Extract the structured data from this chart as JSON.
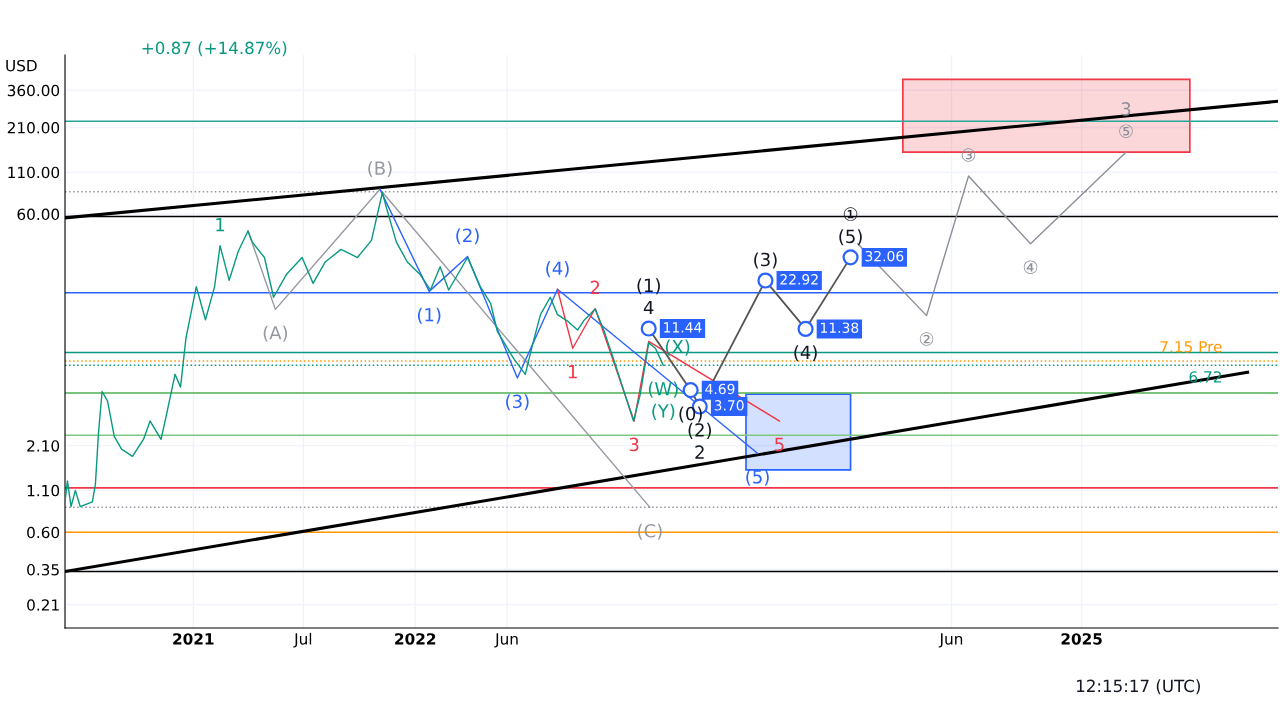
{
  "chart_data": {
    "type": "line",
    "ylabel": "USD",
    "log": true,
    "grid": true,
    "xlim": [
      "2020-06-04",
      "2025-11-20"
    ],
    "ylim": [
      0.15,
      600
    ],
    "xticks": [
      {
        "value": "2021-01-01",
        "label": "2021"
      },
      {
        "value": "2021-07-01",
        "label": "Jul"
      },
      {
        "value": "2022-01-01",
        "label": "2022"
      },
      {
        "value": "2022-06-01",
        "label": "Jun"
      },
      {
        "value": "2024-06-01",
        "label": "Jun"
      },
      {
        "value": "2025-01-01",
        "label": "2025"
      }
    ],
    "yticks": [
      {
        "value": 360,
        "label": "360.00"
      },
      {
        "value": 210,
        "label": "210.00"
      },
      {
        "value": 110,
        "label": "110.00"
      },
      {
        "value": 60,
        "label": "60.00"
      },
      {
        "value": 2.1,
        "label": "2.10"
      },
      {
        "value": 1.1,
        "label": "1.10"
      },
      {
        "value": 0.6,
        "label": "0.60"
      },
      {
        "value": 0.35,
        "label": "0.35"
      },
      {
        "value": 0.21,
        "label": "0.21"
      }
    ],
    "series": [
      {
        "type": "area",
        "color": "#f23645",
        "x": [
          "2024-03-13",
          "2024-03-13",
          "2025-06-28",
          "2025-06-28",
          "2024-03-13"
        ],
        "values": [
          147,
          422,
          422,
          147,
          147
        ]
      },
      {
        "type": "area",
        "color": "#2962ff",
        "x": [
          "2023-06-29",
          "2023-06-29",
          "2023-12-18",
          "2023-12-18",
          "2023-06-29"
        ],
        "values": [
          1.48,
          4.42,
          4.42,
          1.48,
          1.48
        ]
      },
      {
        "color": "#000000",
        "x": [
          "2020-06-04",
          "2025-11-20"
        ],
        "values": [
          56.8,
          307
        ]
      },
      {
        "color": "#000000",
        "x": [
          "2020-06-04",
          "2025-10-01"
        ],
        "values": [
          0.34,
          6.07
        ]
      },
      {
        "color": "#9598a1",
        "x": [
          "2021-04-01",
          "2021-05-16",
          "2021-11-04",
          "2023-01-22"
        ],
        "values": [
          47,
          15.1,
          86,
          0.86
        ]
      },
      {
        "color": "#2962ff",
        "x": [
          "2021-11-04",
          "2022-01-24",
          "2022-03-28",
          "2022-06-18",
          "2022-08-23",
          "2023-07-18"
        ],
        "values": [
          86,
          19.6,
          32.5,
          5.6,
          20.2,
          1.88
        ]
      },
      {
        "color": "#f23645",
        "x": [
          "2022-08-23",
          "2022-09-17",
          "2022-10-24",
          "2022-12-27",
          "2023-01-20",
          "2023-08-23"
        ],
        "values": [
          20.2,
          8.6,
          15.3,
          3.0,
          9.5,
          3.0
        ]
      },
      {
        "color": "#089981",
        "x": [
          "2020-06-04",
          "2020-06-08",
          "2020-06-14",
          "2020-06-21",
          "2020-06-29",
          "2020-07-19",
          "2020-07-24",
          "2020-07-29",
          "2020-08-04",
          "2020-08-13",
          "2020-08-24",
          "2020-09-05",
          "2020-09-23",
          "2020-10-11",
          "2020-10-22",
          "2020-11-09",
          "2020-11-18",
          "2020-12-02",
          "2020-12-11",
          "2020-12-20",
          "2021-01-06",
          "2021-01-21",
          "2021-02-05",
          "2021-02-14",
          "2021-03-01",
          "2021-03-16",
          "2021-04-01",
          "2021-04-08",
          "2021-04-28",
          "2021-05-13",
          "2021-06-03",
          "2021-06-29",
          "2021-07-17",
          "2021-08-06",
          "2021-09-01",
          "2021-09-28",
          "2021-10-21",
          "2021-11-08",
          "2021-11-15",
          "2021-12-01",
          "2021-12-19",
          "2022-01-09",
          "2022-01-26",
          "2022-02-11",
          "2022-02-25",
          "2022-03-28",
          "2022-04-18",
          "2022-05-05",
          "2022-05-16",
          "2022-06-12",
          "2022-07-01",
          "2022-07-14",
          "2022-07-26",
          "2022-08-11",
          "2022-08-23",
          "2022-09-08",
          "2022-09-25",
          "2022-10-05",
          "2022-10-24",
          "2022-11-07",
          "2022-11-23",
          "2022-12-26",
          "2023-01-06",
          "2023-01-20",
          "2023-01-31",
          "2023-02-08",
          "2023-02-13"
        ],
        "values": [
          0.93,
          1.26,
          0.87,
          1.1,
          0.87,
          0.93,
          1.2,
          2.5,
          4.6,
          4.0,
          2.4,
          2.0,
          1.8,
          2.3,
          3.0,
          2.3,
          3.3,
          5.9,
          4.9,
          10,
          21,
          13,
          21,
          38,
          23,
          35,
          47,
          40,
          32,
          18,
          25,
          32,
          22,
          30,
          36,
          32,
          41,
          82,
          65,
          40,
          30,
          25,
          20,
          28,
          20,
          32,
          21,
          16.5,
          11,
          7.4,
          5.9,
          9.4,
          14,
          18,
          14,
          12.8,
          11.2,
          12.8,
          15.2,
          11.2,
          7.4,
          3.0,
          4.4,
          9.3,
          8.6,
          7.4,
          6.72
        ]
      },
      {
        "color": "#555555",
        "marker": "circle",
        "x": [
          "2023-01-20",
          "2023-03-30",
          "2023-04-14",
          "2023-07-31",
          "2023-10-05",
          "2023-12-18"
        ],
        "values": [
          11.44,
          4.69,
          3.7,
          22.92,
          11.38,
          32.06
        ],
        "value_labels": [
          "11.44",
          "4.69",
          "3.70",
          "22.92",
          "11.38",
          "32.06"
        ]
      },
      {
        "color": "#8a8e99",
        "x": [
          "2023-12-30",
          "2024-04-21",
          "2024-06-29",
          "2024-10-09",
          "2025-03-15"
        ],
        "values": [
          39,
          13.8,
          104,
          39,
          147
        ]
      }
    ],
    "ref_lines": [
      {
        "axis": "y",
        "value": 230,
        "color": "#26a69a"
      },
      {
        "axis": "y",
        "value": 83,
        "color": "#9598a1",
        "line_style": "dotted"
      },
      {
        "axis": "y",
        "value": 58,
        "color": "#000000"
      },
      {
        "axis": "y",
        "value": 19.2,
        "color": "#2962ff"
      },
      {
        "axis": "y",
        "value": 8.1,
        "color": "#089981"
      },
      {
        "axis": "y",
        "value": 7.15,
        "color": "#ff9800",
        "line_style": "dotted",
        "label": "7.15 Pre"
      },
      {
        "axis": "y",
        "value": 6.72,
        "color": "#089981",
        "line_style": "dotted",
        "label": "6.72"
      },
      {
        "axis": "y",
        "value": 4.5,
        "color": "#4caf50"
      },
      {
        "axis": "y",
        "value": 2.44,
        "color": "#81c784"
      },
      {
        "axis": "y",
        "value": 1.14,
        "color": "#f23645"
      },
      {
        "axis": "y",
        "value": 0.86,
        "color": "#9598a1",
        "line_style": "dotted"
      },
      {
        "axis": "y",
        "value": 0.6,
        "color": "#ff9800"
      },
      {
        "axis": "y",
        "value": 0.34,
        "color": "#000000"
      }
    ],
    "annotations": [
      "+0.87 (+14.87%)",
      "12:15:17 (UTC)",
      {
        "text": "1",
        "x": "2021-02-14",
        "y": 38
      },
      {
        "text": "(A)",
        "x": "2021-05-16",
        "y": 15.1
      },
      {
        "text": "(B)",
        "x": "2021-11-04",
        "y": 86
      },
      {
        "text": "(C)",
        "x": "2023-01-22",
        "y": 0.86
      },
      {
        "text": "(1)",
        "x": "2022-01-24",
        "y": 19.6
      },
      {
        "text": "(2)",
        "x": "2022-03-28",
        "y": 32.5
      },
      {
        "text": "(3)",
        "x": "2022-06-18",
        "y": 5.6
      },
      {
        "text": "(4)",
        "x": "2022-08-23",
        "y": 20.2
      },
      {
        "text": "(5)",
        "x": "2023-07-18",
        "y": 1.88
      },
      {
        "text": "1",
        "x": "2022-09-17",
        "y": 8.6
      },
      {
        "text": "2",
        "x": "2022-10-24",
        "y": 15.3
      },
      {
        "text": "3",
        "x": "2022-12-27",
        "y": 3.0
      },
      {
        "text": "5",
        "x": "2023-08-23",
        "y": 3.0
      },
      {
        "text": "(X)",
        "x": "2023-01-31",
        "y": 8.6
      },
      {
        "text": "(W)",
        "x": "2023-02-13",
        "y": 6.72
      },
      {
        "text": "(Y)",
        "x": "2023-02-13",
        "y": 6.72
      },
      {
        "text": "4",
        "x": "2023-01-20",
        "y": 11.44
      },
      {
        "text": "(1)",
        "x": "2023-01-20",
        "y": 11.44
      },
      {
        "text": "(0)",
        "x": "2023-03-30",
        "y": 4.69
      },
      {
        "text": "(2)",
        "x": "2023-04-14",
        "y": 3.7
      },
      {
        "text": "2",
        "x": "2023-04-14",
        "y": 3.7
      },
      {
        "text": "(3)",
        "x": "2023-07-31",
        "y": 22.92
      },
      {
        "text": "(4)",
        "x": "2023-10-05",
        "y": 11.38
      },
      {
        "text": "(5)",
        "x": "2023-12-18",
        "y": 32.06
      },
      {
        "text": "①",
        "x": "2023-12-18",
        "y": 32.06
      },
      {
        "text": "②",
        "x": "2024-04-21",
        "y": 13.8
      },
      {
        "text": "③",
        "x": "2024-06-29",
        "y": 104
      },
      {
        "text": "④",
        "x": "2024-10-09",
        "y": 39
      },
      {
        "text": "⑤",
        "x": "2025-03-15",
        "y": 147
      },
      {
        "text": "3",
        "x": "2025-03-15",
        "y": 147
      }
    ]
  }
}
